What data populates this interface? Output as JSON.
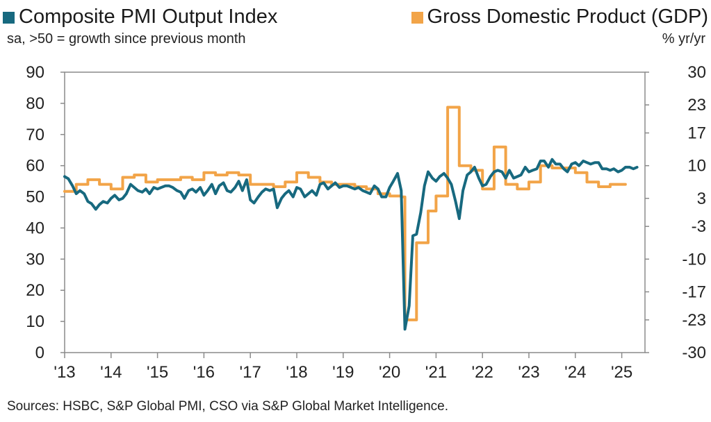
{
  "chart_data": {
    "type": "line",
    "title": "",
    "xlabel": "",
    "ylabel": "",
    "legend": "top",
    "colors": {
      "pmi": "#17697f",
      "gdp": "#f2a448",
      "axis": "#8a8a8a"
    },
    "legend_entries": {
      "pmi": "Composite PMI Output Index",
      "gdp": "Gross Domestic Product (GDP)"
    },
    "subtitle": "sa, >50 = growth since previous month",
    "right_axis_unit": "% yr/yr",
    "source": "Sources: HSBC, S&P Global PMI, CSO via S&P Global Market Intelligence.",
    "x_range": [
      2013.0,
      2025.5
    ],
    "y_left": {
      "min": 0,
      "max": 90,
      "ticks": [
        0,
        10,
        20,
        30,
        40,
        50,
        60,
        70,
        80,
        90
      ]
    },
    "y_right": {
      "min": -30,
      "max": 30,
      "ticks": [
        30,
        23,
        17,
        10,
        3,
        -3,
        -10,
        -17,
        -23,
        -30
      ],
      "labels": [
        "30",
        "23",
        "17",
        "10",
        "3",
        "-3",
        "-10",
        "-17",
        "-23",
        "-30"
      ]
    },
    "x_ticks": [
      {
        "x": 2013,
        "label": "'13"
      },
      {
        "x": 2014,
        "label": "'14"
      },
      {
        "x": 2015,
        "label": "'15"
      },
      {
        "x": 2016,
        "label": "'16"
      },
      {
        "x": 2017,
        "label": "'17"
      },
      {
        "x": 2018,
        "label": "'18"
      },
      {
        "x": 2019,
        "label": "'19"
      },
      {
        "x": 2020,
        "label": "'20"
      },
      {
        "x": 2021,
        "label": "'21"
      },
      {
        "x": 2022,
        "label": "'22"
      },
      {
        "x": 2023,
        "label": "'23"
      },
      {
        "x": 2024,
        "label": "'24"
      },
      {
        "x": 2025,
        "label": "'25"
      }
    ],
    "series": [
      {
        "name": "Composite PMI Output Index",
        "axis": "left",
        "step": false,
        "points": [
          [
            2013.0,
            56.5
          ],
          [
            2013.08,
            55.8
          ],
          [
            2013.17,
            53.5
          ],
          [
            2013.25,
            51.0
          ],
          [
            2013.33,
            52.0
          ],
          [
            2013.42,
            51.0
          ],
          [
            2013.5,
            48.5
          ],
          [
            2013.58,
            47.8
          ],
          [
            2013.67,
            46.0
          ],
          [
            2013.75,
            47.5
          ],
          [
            2013.83,
            48.5
          ],
          [
            2013.92,
            48.0
          ],
          [
            2014.0,
            49.5
          ],
          [
            2014.08,
            50.5
          ],
          [
            2014.17,
            49.0
          ],
          [
            2014.25,
            49.5
          ],
          [
            2014.33,
            51.0
          ],
          [
            2014.42,
            54.0
          ],
          [
            2014.5,
            53.0
          ],
          [
            2014.58,
            52.0
          ],
          [
            2014.67,
            51.5
          ],
          [
            2014.75,
            52.5
          ],
          [
            2014.83,
            51.0
          ],
          [
            2014.92,
            53.0
          ],
          [
            2015.0,
            52.5
          ],
          [
            2015.08,
            53.0
          ],
          [
            2015.17,
            53.5
          ],
          [
            2015.25,
            53.5
          ],
          [
            2015.33,
            53.0
          ],
          [
            2015.42,
            52.0
          ],
          [
            2015.5,
            51.5
          ],
          [
            2015.58,
            49.5
          ],
          [
            2015.67,
            52.0
          ],
          [
            2015.75,
            52.5
          ],
          [
            2015.83,
            51.5
          ],
          [
            2015.92,
            53.0
          ],
          [
            2016.0,
            50.5
          ],
          [
            2016.08,
            52.0
          ],
          [
            2016.17,
            54.0
          ],
          [
            2016.25,
            51.0
          ],
          [
            2016.33,
            53.5
          ],
          [
            2016.42,
            54.5
          ],
          [
            2016.5,
            52.0
          ],
          [
            2016.58,
            51.5
          ],
          [
            2016.67,
            53.0
          ],
          [
            2016.75,
            55.0
          ],
          [
            2016.83,
            52.0
          ],
          [
            2016.92,
            55.5
          ],
          [
            2017.0,
            49.0
          ],
          [
            2017.08,
            48.0
          ],
          [
            2017.17,
            50.0
          ],
          [
            2017.25,
            51.5
          ],
          [
            2017.33,
            52.5
          ],
          [
            2017.42,
            52.0
          ],
          [
            2017.5,
            52.5
          ],
          [
            2017.58,
            46.5
          ],
          [
            2017.67,
            49.5
          ],
          [
            2017.75,
            51.0
          ],
          [
            2017.83,
            52.0
          ],
          [
            2017.92,
            50.0
          ],
          [
            2018.0,
            53.0
          ],
          [
            2018.08,
            52.5
          ],
          [
            2018.17,
            50.0
          ],
          [
            2018.25,
            51.0
          ],
          [
            2018.33,
            52.0
          ],
          [
            2018.42,
            50.5
          ],
          [
            2018.5,
            54.0
          ],
          [
            2018.58,
            54.5
          ],
          [
            2018.67,
            52.5
          ],
          [
            2018.75,
            53.5
          ],
          [
            2018.83,
            54.5
          ],
          [
            2018.92,
            53.0
          ],
          [
            2019.0,
            53.5
          ],
          [
            2019.08,
            53.5
          ],
          [
            2019.17,
            53.0
          ],
          [
            2019.25,
            52.5
          ],
          [
            2019.33,
            53.0
          ],
          [
            2019.42,
            52.0
          ],
          [
            2019.5,
            51.5
          ],
          [
            2019.58,
            51.0
          ],
          [
            2019.67,
            53.5
          ],
          [
            2019.75,
            52.5
          ],
          [
            2019.83,
            50.0
          ],
          [
            2019.92,
            50.0
          ],
          [
            2020.0,
            53.0
          ],
          [
            2020.08,
            55.0
          ],
          [
            2020.17,
            57.5
          ],
          [
            2020.25,
            52.0
          ],
          [
            2020.33,
            7.5
          ],
          [
            2020.42,
            15.0
          ],
          [
            2020.5,
            37.5
          ],
          [
            2020.58,
            38.0
          ],
          [
            2020.67,
            45.0
          ],
          [
            2020.75,
            53.5
          ],
          [
            2020.83,
            58.0
          ],
          [
            2020.92,
            56.0
          ],
          [
            2021.0,
            55.0
          ],
          [
            2021.08,
            56.5
          ],
          [
            2021.17,
            57.5
          ],
          [
            2021.25,
            56.0
          ],
          [
            2021.33,
            54.0
          ],
          [
            2021.42,
            48.5
          ],
          [
            2021.5,
            43.0
          ],
          [
            2021.58,
            52.0
          ],
          [
            2021.67,
            57.0
          ],
          [
            2021.75,
            58.0
          ],
          [
            2021.83,
            59.5
          ],
          [
            2021.92,
            56.0
          ],
          [
            2022.0,
            53.5
          ],
          [
            2022.08,
            54.0
          ],
          [
            2022.17,
            56.5
          ],
          [
            2022.25,
            58.0
          ],
          [
            2022.33,
            58.5
          ],
          [
            2022.42,
            58.0
          ],
          [
            2022.5,
            56.0
          ],
          [
            2022.58,
            58.5
          ],
          [
            2022.67,
            56.0
          ],
          [
            2022.75,
            56.5
          ],
          [
            2022.83,
            57.0
          ],
          [
            2022.92,
            59.5
          ],
          [
            2023.0,
            58.0
          ],
          [
            2023.08,
            58.5
          ],
          [
            2023.17,
            59.0
          ],
          [
            2023.25,
            61.5
          ],
          [
            2023.33,
            61.5
          ],
          [
            2023.42,
            59.5
          ],
          [
            2023.5,
            62.0
          ],
          [
            2023.58,
            60.5
          ],
          [
            2023.67,
            60.5
          ],
          [
            2023.75,
            59.0
          ],
          [
            2023.83,
            58.0
          ],
          [
            2023.92,
            60.5
          ],
          [
            2024.0,
            61.0
          ],
          [
            2024.08,
            60.0
          ],
          [
            2024.17,
            61.5
          ],
          [
            2024.25,
            61.0
          ],
          [
            2024.33,
            60.5
          ],
          [
            2024.42,
            61.0
          ],
          [
            2024.5,
            61.0
          ],
          [
            2024.58,
            59.0
          ],
          [
            2024.67,
            59.0
          ],
          [
            2024.75,
            58.5
          ],
          [
            2024.83,
            59.0
          ],
          [
            2024.92,
            58.0
          ],
          [
            2025.0,
            58.5
          ],
          [
            2025.08,
            59.5
          ],
          [
            2025.17,
            59.5
          ],
          [
            2025.25,
            59.0
          ],
          [
            2025.33,
            59.5
          ]
        ]
      },
      {
        "name": "Gross Domestic Product (GDP)",
        "axis": "right",
        "step": true,
        "points": [
          [
            2013.0,
            4.5
          ],
          [
            2013.25,
            6.0
          ],
          [
            2013.5,
            7.0
          ],
          [
            2013.75,
            6.0
          ],
          [
            2014.0,
            5.0
          ],
          [
            2014.25,
            7.5
          ],
          [
            2014.5,
            8.0
          ],
          [
            2014.75,
            6.5
          ],
          [
            2015.0,
            7.0
          ],
          [
            2015.25,
            7.0
          ],
          [
            2015.5,
            7.5
          ],
          [
            2015.75,
            7.0
          ],
          [
            2016.0,
            8.5
          ],
          [
            2016.25,
            8.0
          ],
          [
            2016.5,
            8.5
          ],
          [
            2016.75,
            8.0
          ],
          [
            2017.0,
            6.0
          ],
          [
            2017.25,
            6.0
          ],
          [
            2017.5,
            5.5
          ],
          [
            2017.75,
            6.5
          ],
          [
            2018.0,
            8.5
          ],
          [
            2018.25,
            7.5
          ],
          [
            2018.5,
            6.5
          ],
          [
            2018.75,
            6.0
          ],
          [
            2019.0,
            6.0
          ],
          [
            2019.25,
            5.5
          ],
          [
            2019.5,
            5.0
          ],
          [
            2019.75,
            4.0
          ],
          [
            2020.0,
            3.5
          ],
          [
            2020.25,
            3.3
          ],
          [
            2020.33,
            -23.0
          ],
          [
            2020.58,
            -6.5
          ],
          [
            2020.83,
            0.3
          ],
          [
            2021.0,
            3.5
          ],
          [
            2021.25,
            22.5
          ],
          [
            2021.5,
            10.0
          ],
          [
            2021.75,
            9.0
          ],
          [
            2022.0,
            5.0
          ],
          [
            2022.25,
            14.0
          ],
          [
            2022.5,
            6.0
          ],
          [
            2022.75,
            5.0
          ],
          [
            2023.0,
            6.5
          ],
          [
            2023.25,
            10.0
          ],
          [
            2023.5,
            9.5
          ],
          [
            2023.75,
            9.5
          ],
          [
            2024.0,
            8.5
          ],
          [
            2024.25,
            6.5
          ],
          [
            2024.5,
            5.5
          ],
          [
            2024.75,
            6.0
          ],
          [
            2025.0,
            6.0
          ],
          [
            2025.08,
            6.0
          ]
        ]
      }
    ]
  }
}
